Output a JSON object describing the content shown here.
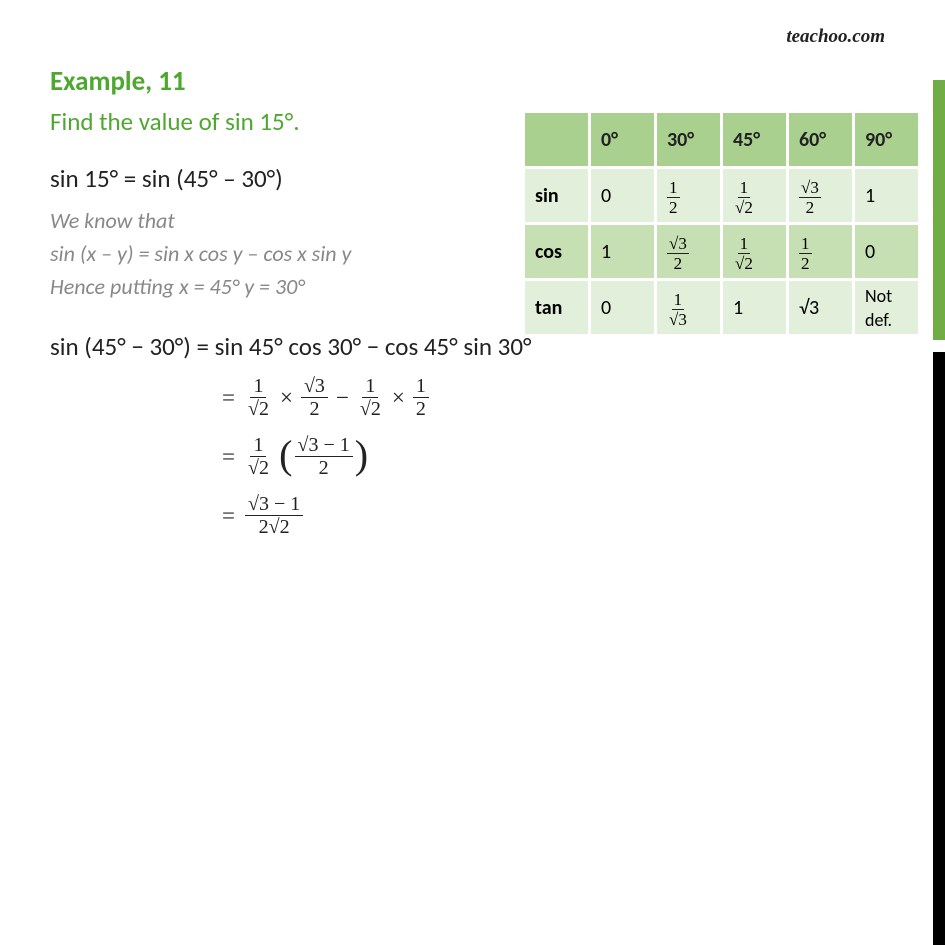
{
  "watermark": "teachoo.com",
  "example_label": "Example,  11",
  "question": "Find the value of sin 15°.",
  "step1": "sin 15° = sin (45° – 30°)",
  "hint_line1": "We know that",
  "hint_line2": "sin (x – y) = sin x cos y – cos x sin y",
  "hint_line3": "Hence putting x = 45°  y = 30°",
  "step2": "sin (45° − 30°) = sin 45°  cos 30° − cos 45° sin 30°",
  "calc": {
    "l1_a_num": "1",
    "l1_a_den": "√2",
    "l1_b_num": "√3",
    "l1_b_den": "2",
    "l1_c_num": "1",
    "l1_c_den": "√2",
    "l1_d_num": "1",
    "l1_d_den": "2",
    "l2_a_num": "1",
    "l2_a_den": "√2",
    "l2_b_num": "√3 − 1",
    "l2_b_den": "2",
    "l3_num": "√3 − 1",
    "l3_den": "2√2"
  },
  "trig_table": {
    "headers": [
      "",
      "0°",
      "30°",
      "45°",
      "60°",
      "90°"
    ],
    "rows": [
      {
        "label": "sin",
        "cells": [
          "0",
          {
            "n": "1",
            "d": "2"
          },
          {
            "n": "1",
            "d": "√2"
          },
          {
            "n": "√3",
            "d": "2"
          },
          "1"
        ]
      },
      {
        "label": "cos",
        "cells": [
          "1",
          {
            "n": "√3",
            "d": "2"
          },
          {
            "n": "1",
            "d": "√2"
          },
          {
            "n": "1",
            "d": "2"
          },
          "0"
        ]
      },
      {
        "label": "tan",
        "cells": [
          "0",
          {
            "n": "1",
            "d": "√3"
          },
          "1",
          "√3",
          "Not def."
        ]
      }
    ]
  },
  "colors": {
    "accent_green": "#4ea72e",
    "bar_green": "#70ad47",
    "table_header": "#a9d08e",
    "table_row_light": "#e2efda",
    "table_row_med": "#c6e0b4",
    "hint_gray": "#888888",
    "text": "#222222",
    "black_bar": "#000000"
  }
}
